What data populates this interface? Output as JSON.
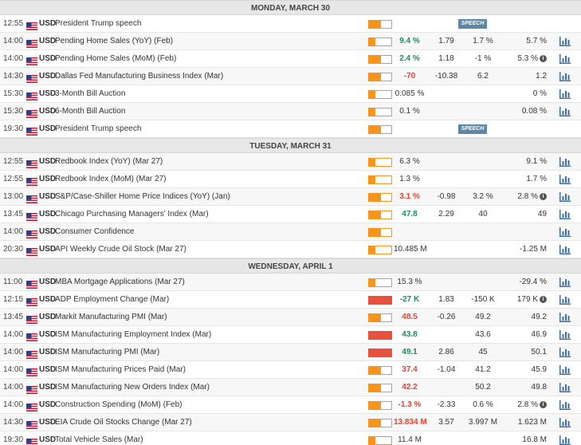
{
  "colors": {
    "accent": "#f7941d",
    "positive": "#1c8a5e",
    "negative": "#e8412c",
    "high_impact": "#e8513c",
    "speech_badge": "#5b88a8",
    "chart_icon": "#3c6fa0"
  },
  "icons": {
    "flag": "us-flag-icon",
    "chart": "bar-chart-icon",
    "info": "info-icon"
  },
  "days": [
    {
      "title": "MONDAY, MARCH 30",
      "events": [
        {
          "time": "12:55",
          "currency": "USD",
          "name": "President Trump speech",
          "impact": "medium",
          "fill": 0.55,
          "speech": "SPEECH"
        },
        {
          "time": "14:00",
          "currency": "USD",
          "name": "Pending Home Sales (YoY) (Feb)",
          "impact": "low",
          "fill": 0.3,
          "actual": "9.4 %",
          "actual_tone": "pos",
          "forecast": "1.79",
          "previous": "1.7 %",
          "revised": "5.7 %",
          "chart": true
        },
        {
          "time": "14:00",
          "currency": "USD",
          "name": "Pending Home Sales (MoM) (Feb)",
          "impact": "medium",
          "fill": 0.55,
          "actual": "2.4 %",
          "actual_tone": "pos",
          "forecast": "1.18",
          "previous": "-1 %",
          "revised": "5.3 %",
          "revised_info": true,
          "chart": true
        },
        {
          "time": "14:30",
          "currency": "USD",
          "name": "Dallas Fed Manufacturing Business Index (Mar)",
          "impact": "medium",
          "fill": 0.55,
          "actual": "-70",
          "actual_tone": "neg",
          "forecast": "-10.38",
          "previous": "6.2",
          "revised": "1.2",
          "chart": true
        },
        {
          "time": "15:30",
          "currency": "USD",
          "name": "3-Month Bill Auction",
          "impact": "low",
          "fill": 0.3,
          "actual": "0.085 %",
          "actual_tone": "neu",
          "revised": "0 %",
          "chart": true
        },
        {
          "time": "15:30",
          "currency": "USD",
          "name": "6-Month Bill Auction",
          "impact": "low",
          "fill": 0.3,
          "actual": "0.1 %",
          "actual_tone": "neu",
          "revised": "0.08 %",
          "chart": true
        },
        {
          "time": "19:30",
          "currency": "USD",
          "name": "President Trump speech",
          "impact": "medium",
          "fill": 0.55,
          "speech": "SPEECH"
        }
      ]
    },
    {
      "title": "TUESDAY, MARCH 31",
      "events": [
        {
          "time": "12:55",
          "currency": "USD",
          "name": "Redbook Index (YoY) (Mar 27)",
          "impact": "low",
          "fill": 0.3,
          "actual": "6.3 %",
          "actual_tone": "neu",
          "revised": "9.1 %",
          "chart": true
        },
        {
          "time": "12:55",
          "currency": "USD",
          "name": "Redbook Index (MoM) (Mar 27)",
          "impact": "low",
          "fill": 0.3,
          "actual": "1.3 %",
          "actual_tone": "neu",
          "revised": "1.7 %",
          "chart": true
        },
        {
          "time": "13:00",
          "currency": "USD",
          "name": "S&P/Case-Shiller Home Price Indices (YoY) (Jan)",
          "impact": "medium",
          "fill": 0.55,
          "actual": "3.1 %",
          "actual_tone": "neg",
          "forecast": "-0.98",
          "previous": "3.2 %",
          "revised": "2.8 %",
          "revised_info": true,
          "chart": true
        },
        {
          "time": "13:45",
          "currency": "USD",
          "name": "Chicago Purchasing Managers' Index (Mar)",
          "impact": "medium",
          "fill": 0.55,
          "actual": "47.8",
          "actual_tone": "pos",
          "forecast": "2.29",
          "previous": "40",
          "revised": "49",
          "chart": true
        },
        {
          "time": "14:00",
          "currency": "USD",
          "name": "Consumer Confidence",
          "impact": "medium",
          "fill": 0.55,
          "chart": true
        },
        {
          "time": "20:30",
          "currency": "USD",
          "name": "API Weekly Crude Oil Stock (Mar 27)",
          "impact": "low",
          "fill": 0.3,
          "actual": "10.485 M",
          "actual_tone": "neu",
          "revised": "-1.25 M",
          "chart": true
        }
      ]
    },
    {
      "title": "WEDNESDAY, APRIL 1",
      "events": [
        {
          "time": "11:00",
          "currency": "USD",
          "name": "MBA Mortgage Applications (Mar 27)",
          "impact": "low",
          "fill": 0.3,
          "actual": "15.3 %",
          "actual_tone": "neu",
          "revised": "-29.4 %",
          "chart": true
        },
        {
          "time": "12:15",
          "currency": "USD",
          "name": "ADP Employment Change (Mar)",
          "impact": "high",
          "fill": 1.0,
          "actual": "-27 K",
          "actual_tone": "pos",
          "forecast": "1.83",
          "previous": "-150 K",
          "revised": "179 K",
          "revised_info": true,
          "chart": true
        },
        {
          "time": "13:45",
          "currency": "USD",
          "name": "Markit Manufacturing PMI (Mar)",
          "impact": "medium",
          "fill": 0.55,
          "actual": "48.5",
          "actual_tone": "neg",
          "forecast": "-0.26",
          "previous": "49.2",
          "revised": "49.2",
          "chart": true
        },
        {
          "time": "14:00",
          "currency": "USD",
          "name": "ISM Manufacturing Employment Index (Mar)",
          "impact": "high",
          "fill": 1.0,
          "actual": "43.8",
          "actual_tone": "pos",
          "previous": "43.6",
          "revised": "46.9",
          "chart": true
        },
        {
          "time": "14:00",
          "currency": "USD",
          "name": "ISM Manufacturing PMI (Mar)",
          "impact": "high",
          "fill": 1.0,
          "actual": "49.1",
          "actual_tone": "pos",
          "forecast": "2.86",
          "previous": "45",
          "revised": "50.1",
          "chart": true
        },
        {
          "time": "14:00",
          "currency": "USD",
          "name": "ISM Manufacturing Prices Paid (Mar)",
          "impact": "medium",
          "fill": 0.55,
          "actual": "37.4",
          "actual_tone": "neg",
          "forecast": "-1.04",
          "previous": "41.2",
          "revised": "45.9",
          "chart": true
        },
        {
          "time": "14:00",
          "currency": "USD",
          "name": "ISM Manufacturing New Orders Index (Mar)",
          "impact": "medium",
          "fill": 0.55,
          "actual": "42.2",
          "actual_tone": "neg",
          "previous": "50.2",
          "revised": "49.8",
          "chart": true
        },
        {
          "time": "14:00",
          "currency": "USD",
          "name": "Construction Spending (MoM) (Feb)",
          "impact": "medium",
          "fill": 0.55,
          "actual": "-1.3 %",
          "actual_tone": "neg",
          "forecast": "-2.33",
          "previous": "0.6 %",
          "revised": "2.8 %",
          "revised_info": true,
          "chart": true
        },
        {
          "time": "14:30",
          "currency": "USD",
          "name": "EIA Crude Oil Stocks Change (Mar 27)",
          "impact": "medium",
          "fill": 0.55,
          "actual": "13.834 M",
          "actual_tone": "neg",
          "forecast": "3.57",
          "previous": "3.997 M",
          "revised": "1.623 M",
          "chart": true
        },
        {
          "time": "19:30",
          "currency": "USD",
          "name": "Total Vehicle Sales (Mar)",
          "impact": "low",
          "fill": 0.3,
          "actual": "11.4 M",
          "actual_tone": "neu",
          "revised": "16.8 M",
          "chart": true
        }
      ]
    }
  ]
}
